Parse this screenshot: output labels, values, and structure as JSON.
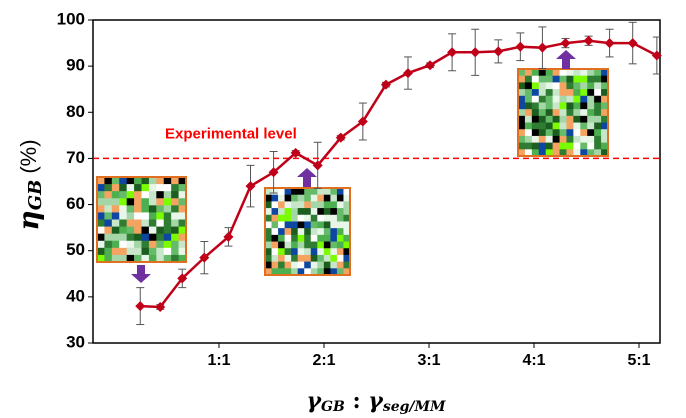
{
  "chart_data": {
    "type": "line",
    "y_label": {
      "symbol": "η",
      "subscript": "GB",
      "unit": "(%)"
    },
    "x_label": {
      "left": "γ",
      "left_subscript": "GB",
      "separator": " : ",
      "right": "γ",
      "right_subscript": "seg/MM"
    },
    "x": [
      0.25,
      0.44,
      0.65,
      0.86,
      1.09,
      1.3,
      1.52,
      1.73,
      1.94,
      2.16,
      2.37,
      2.59,
      2.8,
      3.01,
      3.22,
      3.44,
      3.66,
      3.87,
      4.08,
      4.3,
      4.52,
      4.72,
      4.94,
      5.17
    ],
    "series": [
      {
        "color": "#c00018",
        "values": [
          38,
          37.8,
          44,
          48.5,
          53,
          64,
          67,
          71.2,
          68.5,
          74.5,
          78,
          86,
          88.5,
          90.2,
          93,
          93,
          93.2,
          94.2,
          94,
          95,
          95.5,
          95,
          95,
          92.3
        ],
        "errors": [
          4,
          0.5,
          2,
          3.5,
          2,
          4.5,
          4.5,
          0.5,
          5,
          0.5,
          4,
          0.5,
          3.5,
          0.5,
          4,
          5,
          2.5,
          3,
          4.5,
          1,
          1,
          3,
          4.5,
          4
        ]
      }
    ],
    "xlim": [
      -0.2,
      5.2
    ],
    "xticks": [
      {
        "value": 1,
        "label": "1:1"
      },
      {
        "value": 2,
        "label": "2:1"
      },
      {
        "value": 3,
        "label": "3:1"
      },
      {
        "value": 4,
        "label": "4:1"
      },
      {
        "value": 5,
        "label": "5:1"
      }
    ],
    "ylim": [
      30,
      100
    ],
    "yticks": [
      30,
      40,
      50,
      60,
      70,
      80,
      90,
      100
    ],
    "reference_line": {
      "value": 70,
      "label": "Experimental level",
      "color": "#ff0000"
    },
    "grid": false
  }
}
